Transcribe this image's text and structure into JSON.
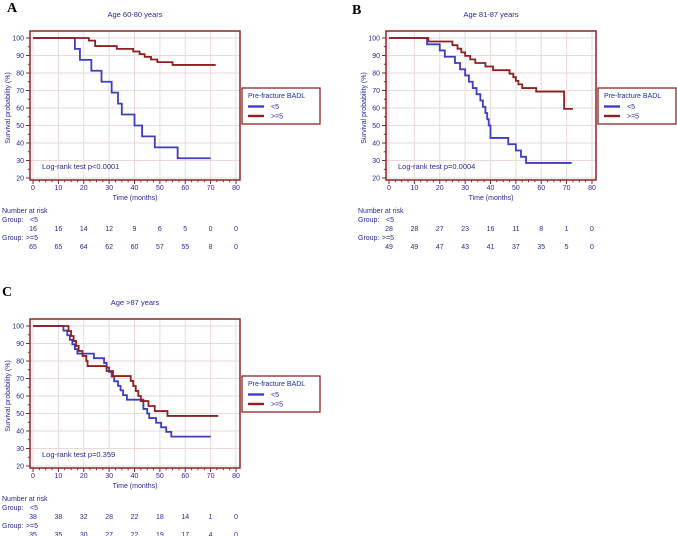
{
  "styles": {
    "text_color": "#28289b",
    "axis_color": "#8e2323",
    "grid_color": "#ead9d9",
    "blue": "#3d3dc2",
    "red": "#8b2121",
    "background": "#ffffff"
  },
  "chart_data": [
    {
      "type": "line",
      "panel_label": "A",
      "title": "Age 60-80 years",
      "xlabel": "Time (months)",
      "ylabel": "Survival probability (%)",
      "xlim": [
        0,
        80
      ],
      "ylim": [
        20,
        100
      ],
      "xticks": [
        0,
        10,
        20,
        30,
        40,
        50,
        60,
        70,
        80
      ],
      "yticks": [
        20,
        30,
        40,
        50,
        60,
        70,
        80,
        90,
        100
      ],
      "grid": true,
      "annotation": "Log-rank test p<0.0001",
      "legend": {
        "title": "Pre-fracture BADL",
        "position": "right"
      },
      "series": [
        {
          "name": "<5",
          "color": "#3d3dc2",
          "start": [
            0,
            100
          ],
          "end_time": 70,
          "steps": [
            [
              16.5,
              93.8
            ],
            [
              18.5,
              87.5
            ],
            [
              23,
              81.3
            ],
            [
              27,
              75
            ],
            [
              31,
              68.8
            ],
            [
              33.5,
              62.5
            ],
            [
              35,
              56.3
            ],
            [
              40,
              50
            ],
            [
              43,
              43.8
            ],
            [
              48,
              37.5
            ],
            [
              57,
              31.3
            ]
          ]
        },
        {
          "name": ">=5",
          "color": "#8b2121",
          "start": [
            0,
            100
          ],
          "end_time": 72,
          "steps": [
            [
              22,
              98.5
            ],
            [
              24.5,
              95.4
            ],
            [
              33,
              93.8
            ],
            [
              39.5,
              92.3
            ],
            [
              42,
              90.8
            ],
            [
              44,
              89.2
            ],
            [
              46.5,
              87.7
            ],
            [
              49,
              86.2
            ],
            [
              55,
              84.6
            ]
          ]
        }
      ],
      "number_at_risk": {
        "header": "Number at risk",
        "times": [
          0,
          10,
          20,
          30,
          40,
          50,
          60,
          70,
          80
        ],
        "groups": [
          {
            "label": "Group:",
            "name": "<5",
            "counts": [
              16,
              16,
              14,
              12,
              9,
              6,
              5,
              0,
              0
            ]
          },
          {
            "label": "Group:",
            "name": ">=5",
            "counts": [
              65,
              65,
              64,
              62,
              60,
              57,
              55,
              8,
              0
            ]
          }
        ]
      }
    },
    {
      "type": "line",
      "panel_label": "B",
      "title": "Age 81-87 years",
      "xlabel": "Time (months)",
      "ylabel": "Survival probability (%)",
      "xlim": [
        0,
        80
      ],
      "ylim": [
        20,
        100
      ],
      "xticks": [
        0,
        10,
        20,
        30,
        40,
        50,
        60,
        70,
        80
      ],
      "yticks": [
        20,
        30,
        40,
        50,
        60,
        70,
        80,
        90,
        100
      ],
      "grid": true,
      "annotation": "Log-rank test p=0.0004",
      "legend": {
        "title": "Pre-fracture BADL",
        "position": "right"
      },
      "series": [
        {
          "name": "<5",
          "color": "#3d3dc2",
          "start": [
            0,
            100
          ],
          "end_time": 72,
          "steps": [
            [
              15,
              96.4
            ],
            [
              20,
              92.9
            ],
            [
              22,
              89.3
            ],
            [
              26,
              85.7
            ],
            [
              28,
              82.1
            ],
            [
              30,
              78.6
            ],
            [
              31.5,
              75
            ],
            [
              33,
              71.4
            ],
            [
              34.5,
              67.9
            ],
            [
              36,
              64.3
            ],
            [
              37,
              60.7
            ],
            [
              38,
              57.1
            ],
            [
              38.7,
              53.6
            ],
            [
              39.3,
              50
            ],
            [
              40,
              42.9
            ],
            [
              47,
              39.3
            ],
            [
              50,
              35.7
            ],
            [
              52,
              32.1
            ],
            [
              54,
              28.6
            ]
          ]
        },
        {
          "name": ">=5",
          "color": "#8b2121",
          "start": [
            0,
            100
          ],
          "end_time": 72.5,
          "steps": [
            [
              15.5,
              98
            ],
            [
              25,
              95.9
            ],
            [
              27,
              93.9
            ],
            [
              28.5,
              91.8
            ],
            [
              30,
              89.8
            ],
            [
              32,
              87.8
            ],
            [
              34,
              85.7
            ],
            [
              38,
              83.7
            ],
            [
              41,
              81.6
            ],
            [
              47.5,
              79.6
            ],
            [
              49,
              77.6
            ],
            [
              50,
              75.5
            ],
            [
              51,
              73.5
            ],
            [
              52.5,
              71.4
            ],
            [
              58,
              69.4
            ],
            [
              69,
              59.5
            ]
          ]
        }
      ],
      "number_at_risk": {
        "header": "Number at risk",
        "times": [
          0,
          10,
          20,
          30,
          40,
          50,
          60,
          70,
          80
        ],
        "groups": [
          {
            "label": "Group:",
            "name": "<5",
            "counts": [
              28,
              28,
              27,
              23,
              16,
              11,
              8,
              1,
              0
            ]
          },
          {
            "label": "Group:",
            "name": ">=5",
            "counts": [
              49,
              49,
              47,
              43,
              41,
              37,
              35,
              5,
              0
            ]
          }
        ]
      }
    },
    {
      "type": "line",
      "panel_label": "C",
      "title": "Age >87 years",
      "xlabel": "Time (months)",
      "ylabel": "Survival probability (%)",
      "xlim": [
        0,
        80
      ],
      "ylim": [
        20,
        100
      ],
      "xticks": [
        0,
        10,
        20,
        30,
        40,
        50,
        60,
        70,
        80
      ],
      "yticks": [
        20,
        30,
        40,
        50,
        60,
        70,
        80,
        90,
        100
      ],
      "grid": true,
      "annotation": "Log-rank test p=0.359",
      "legend": {
        "title": "Pre-fracture BADL",
        "position": "right"
      },
      "series": [
        {
          "name": "<5",
          "color": "#3d3dc2",
          "start": [
            0,
            100
          ],
          "end_time": 70,
          "steps": [
            [
              12,
              97.4
            ],
            [
              13.5,
              94.7
            ],
            [
              14.5,
              92.1
            ],
            [
              15.5,
              89.5
            ],
            [
              16.5,
              86.8
            ],
            [
              17.5,
              84.2
            ],
            [
              24,
              81.6
            ],
            [
              28,
              78.9
            ],
            [
              29,
              76.3
            ],
            [
              30,
              73.7
            ],
            [
              31,
              71.1
            ],
            [
              32,
              68.4
            ],
            [
              33.5,
              65.8
            ],
            [
              34.5,
              63.2
            ],
            [
              35.5,
              60.5
            ],
            [
              37,
              57.9
            ],
            [
              43.5,
              52.6
            ],
            [
              45,
              50
            ],
            [
              45.8,
              47.4
            ],
            [
              48.5,
              44.7
            ],
            [
              50.5,
              42.1
            ],
            [
              52.5,
              39.5
            ],
            [
              54.5,
              36.8
            ]
          ]
        },
        {
          "name": ">=5",
          "color": "#8b2121",
          "start": [
            0,
            100
          ],
          "end_time": 73,
          "steps": [
            [
              14,
              97.1
            ],
            [
              15,
              94.3
            ],
            [
              16,
              91.4
            ],
            [
              17,
              88.6
            ],
            [
              18,
              85.7
            ],
            [
              19.5,
              82.9
            ],
            [
              21,
              80
            ],
            [
              21.5,
              77.1
            ],
            [
              29,
              74.3
            ],
            [
              31.5,
              71.4
            ],
            [
              38.5,
              68.6
            ],
            [
              39.5,
              65.7
            ],
            [
              40.5,
              62.9
            ],
            [
              41.5,
              60
            ],
            [
              42.5,
              57.1
            ],
            [
              45.5,
              54.3
            ],
            [
              48,
              51.4
            ],
            [
              53,
              48.6
            ]
          ]
        }
      ],
      "number_at_risk": {
        "header": "Number at risk",
        "times": [
          0,
          10,
          20,
          30,
          40,
          50,
          60,
          70,
          80
        ],
        "groups": [
          {
            "label": "Group:",
            "name": "<5",
            "counts": [
              38,
              38,
              32,
              28,
              22,
              18,
              14,
              1,
              0
            ]
          },
          {
            "label": "Group:",
            "name": ">=5",
            "counts": [
              35,
              35,
              30,
              27,
              22,
              19,
              17,
              4,
              0
            ]
          }
        ]
      }
    }
  ]
}
